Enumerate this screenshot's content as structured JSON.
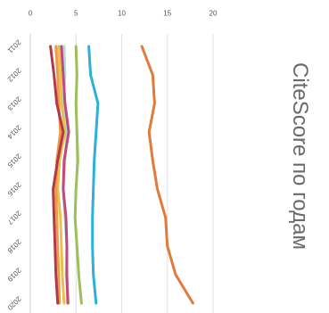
{
  "chart_data": {
    "type": "line",
    "title": "CiteScore по годам",
    "x": [
      "2011",
      "2012",
      "2013",
      "2014",
      "2015",
      "2016",
      "2017",
      "2018",
      "2019",
      "2020"
    ],
    "ylim": [
      0,
      20
    ],
    "yticks": [
      0,
      5,
      10,
      15,
      20
    ],
    "grid": true,
    "series": [
      {
        "color": "#e07b39",
        "values": [
          12.2,
          13.4,
          13.6,
          13.0,
          13.4,
          13.9,
          14.8,
          15.0,
          15.9,
          17.8
        ]
      },
      {
        "color": "#2eb0d8",
        "values": [
          6.4,
          6.6,
          7.4,
          7.2,
          7.0,
          6.9,
          6.8,
          6.8,
          6.9,
          7.2
        ]
      },
      {
        "color": "#9bbf5a",
        "values": [
          5.0,
          5.1,
          5.0,
          5.1,
          5.2,
          5.0,
          4.9,
          5.1,
          5.3,
          5.6
        ]
      },
      {
        "color": "#a8e0d2",
        "values": [
          3.7,
          3.8,
          3.6,
          4.0,
          3.8,
          3.6,
          3.8,
          4.0,
          3.9,
          4.2
        ]
      },
      {
        "color": "#c2497e",
        "values": [
          3.4,
          3.6,
          3.8,
          4.2,
          3.7,
          3.6,
          3.9,
          4.0,
          4.0,
          4.1
        ]
      },
      {
        "color": "#e8c14a",
        "values": [
          3.1,
          3.3,
          3.4,
          3.8,
          3.2,
          3.0,
          3.3,
          3.4,
          3.5,
          3.7
        ]
      },
      {
        "color": "#ef9a4a",
        "values": [
          2.8,
          3.0,
          3.1,
          3.3,
          2.9,
          2.8,
          2.9,
          3.0,
          3.1,
          3.2
        ]
      },
      {
        "color": "#b23a48",
        "values": [
          2.2,
          2.6,
          2.9,
          3.6,
          3.0,
          2.5,
          2.6,
          2.7,
          2.8,
          3.0
        ]
      }
    ]
  }
}
